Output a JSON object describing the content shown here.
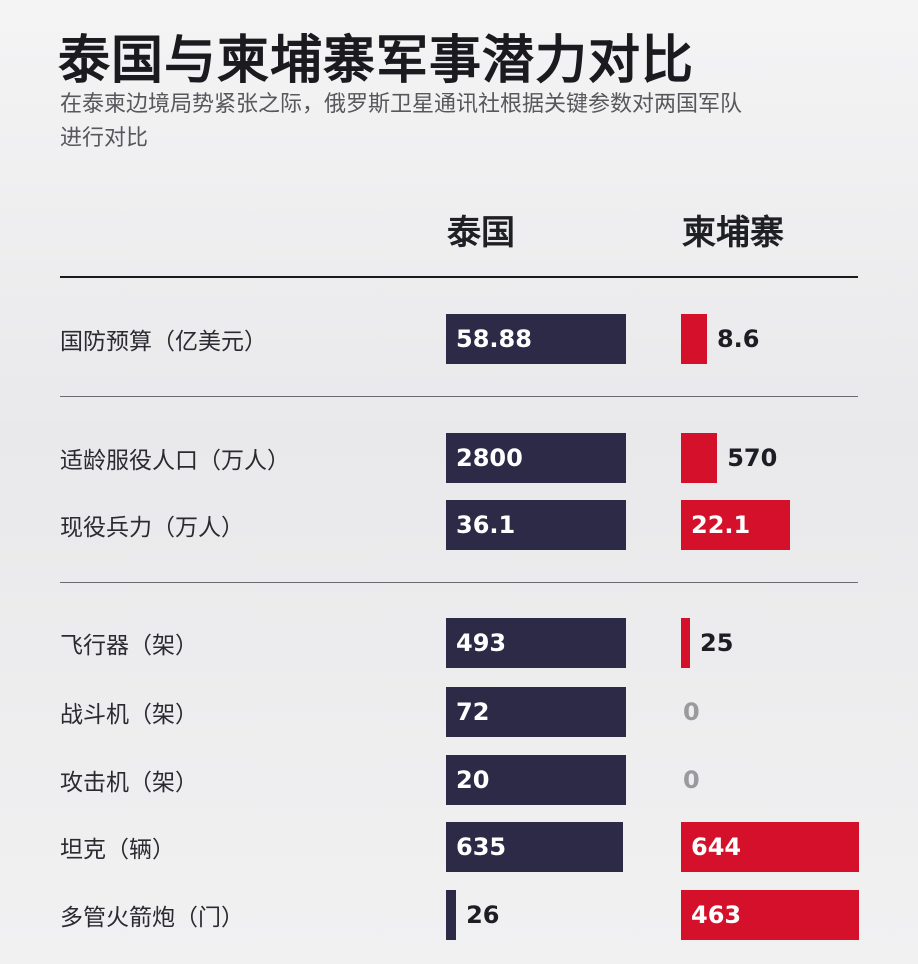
{
  "title": "泰国与柬埔寨军事潜力对比",
  "subtitle": "在泰柬边境局势紧张之际，俄罗斯卫星通讯社根据关键参数对两国军队进行对比",
  "chart_data": {
    "type": "bar",
    "series": [
      {
        "name": "泰国",
        "color": "#2c2a47",
        "values": [
          58.88,
          2800,
          36.1,
          493,
          72,
          20,
          635,
          26
        ]
      },
      {
        "name": "柬埔寨",
        "color": "#d5102a",
        "values": [
          8.6,
          570,
          22.1,
          25,
          0,
          0,
          644,
          463
        ]
      }
    ],
    "categories": [
      "国防预算（亿美元）",
      "适龄服役人口（万人）",
      "现役兵力（万人）",
      "飞行器（架）",
      "战斗机（架）",
      "攻击机（架）",
      "坦克（辆）",
      "多管火箭炮（门）"
    ],
    "value_labels": {
      "泰国": [
        "58.88",
        "2800",
        "36.1",
        "493",
        "72",
        "20",
        "635",
        "26"
      ],
      "柬埔寨": [
        "8.6",
        "570",
        "22.1",
        "25",
        "0",
        "0",
        "644",
        "463"
      ]
    },
    "groups": [
      [
        0
      ],
      [
        1,
        2
      ],
      [
        3,
        4,
        5,
        6,
        7
      ]
    ]
  }
}
